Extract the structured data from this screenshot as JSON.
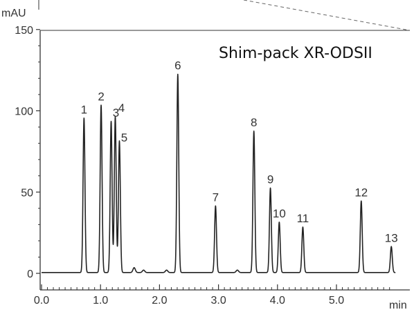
{
  "chart_data": {
    "type": "line",
    "title": "Shim-pack XR-ODSII",
    "xlabel": "min",
    "ylabel": "mAU",
    "xlim": [
      0.0,
      6.0
    ],
    "ylim": [
      -5,
      150
    ],
    "x_ticks": [
      "0.0",
      "1.0",
      "2.0",
      "3.0",
      "4.0",
      "5.0"
    ],
    "y_ticks": [
      "0",
      "50",
      "100",
      "150"
    ],
    "baseline": 0.5,
    "peaks": [
      {
        "label": "1",
        "x": 0.72,
        "height": 95
      },
      {
        "label": "2",
        "x": 1.01,
        "height": 103
      },
      {
        "label": "3",
        "x": 1.18,
        "height": 93
      },
      {
        "label": "4",
        "x": 1.25,
        "height": 96
      },
      {
        "label": "5",
        "x": 1.32,
        "height": 81
      },
      {
        "label": "6",
        "x": 2.31,
        "height": 122
      },
      {
        "label": "7",
        "x": 2.95,
        "height": 41
      },
      {
        "label": "8",
        "x": 3.6,
        "height": 87
      },
      {
        "label": "9",
        "x": 3.88,
        "height": 52
      },
      {
        "label": "10",
        "x": 4.03,
        "height": 31
      },
      {
        "label": "11",
        "x": 4.43,
        "height": 28
      },
      {
        "label": "12",
        "x": 5.42,
        "height": 44
      },
      {
        "label": "13",
        "x": 5.93,
        "height": 16
      }
    ],
    "minor_peaks": [
      {
        "x": 1.57,
        "height": 3
      },
      {
        "x": 1.73,
        "height": 1.5
      },
      {
        "x": 2.12,
        "height": 1.5
      },
      {
        "x": 3.32,
        "height": 1.5
      }
    ],
    "colors": {
      "trace": "#222222",
      "axis": "#333333",
      "callout_line": "#666666"
    }
  }
}
